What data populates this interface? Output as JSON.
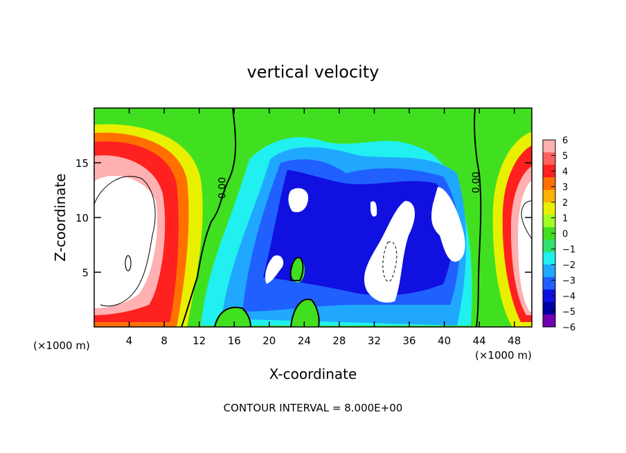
{
  "chart_data": {
    "type": "heatmap",
    "title": "vertical velocity",
    "xlabel": "X-coordinate",
    "ylabel": "Z-coordinate",
    "x_unit_left": "(×1000 m)",
    "x_unit_right": "(×1000 m)",
    "footer": "CONTOUR INTERVAL = 8.000E+00",
    "xlim": [
      0,
      50
    ],
    "ylim": [
      0,
      20
    ],
    "x_ticks": [
      "4",
      "8",
      "12",
      "16",
      "20",
      "24",
      "28",
      "32",
      "36",
      "40",
      "44",
      "48"
    ],
    "x_tick_values": [
      4,
      8,
      12,
      16,
      20,
      24,
      28,
      32,
      36,
      40,
      44,
      48
    ],
    "y_ticks": [
      "5",
      "10",
      "15"
    ],
    "y_tick_values": [
      5,
      10,
      15
    ],
    "contour_labels": [
      {
        "text": "0.00",
        "x": 15.0,
        "z": 12.7
      },
      {
        "text": "0.00",
        "x": 44.0,
        "z": 13.2
      }
    ],
    "colorbar": {
      "min": -6,
      "max": 6,
      "ticks": [
        "6",
        "5",
        "4",
        "3",
        "2",
        "1",
        "0",
        "−1",
        "−2",
        "−3",
        "−4",
        "−5",
        "−6"
      ],
      "colors": [
        "#ffb0b0",
        "#ff6060",
        "#ff2020",
        "#ff7000",
        "#ffb000",
        "#e8f000",
        "#a0ff20",
        "#40e020",
        "#30e070",
        "#20f0f0",
        "#20a8ff",
        "#2060ff",
        "#1010e0",
        "#0000a0",
        "#7000b0"
      ]
    },
    "features": [
      {
        "kind": "updraft",
        "x": 4.5,
        "z": 9.0,
        "w": 6
      },
      {
        "kind": "updraft",
        "x": 49.0,
        "z": 8.0,
        "w": 6
      },
      {
        "kind": "downdraft",
        "x": 23.0,
        "z": 11.5,
        "w": -6
      },
      {
        "kind": "downdraft",
        "x": 34.0,
        "z": 6.0,
        "w": -6
      },
      {
        "kind": "downdraft",
        "x": 39.5,
        "z": 9.0,
        "w": -6
      },
      {
        "kind": "downdraft",
        "x": 20.5,
        "z": 5.0,
        "w": -6
      }
    ]
  }
}
